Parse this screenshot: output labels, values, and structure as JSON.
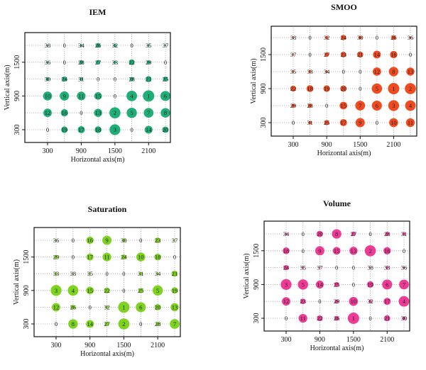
{
  "chart_data": [
    {
      "type": "scatter",
      "title": "IEM",
      "xlabel": "Horizontal axis(m)",
      "ylabel": "Vertical axis(m)",
      "color": "#1fae78",
      "x": [
        300,
        600,
        900,
        1200,
        1500,
        1800,
        2100,
        2400
      ],
      "y": [
        1800,
        1500,
        1200,
        900,
        600,
        300
      ],
      "xticks": [
        "300",
        "900",
        "1500",
        "2100"
      ],
      "yticks": [
        "300",
        "900",
        "1500"
      ],
      "grid": true,
      "values": [
        [
          38,
          0,
          34,
          26,
          32,
          0,
          35,
          37
        ],
        [
          36,
          0,
          28,
          27,
          33,
          22,
          29,
          0
        ],
        [
          30,
          24,
          31,
          0,
          0,
          28,
          21,
          25
        ],
        [
          10,
          9,
          11,
          15,
          0,
          4,
          1,
          6
        ],
        [
          12,
          16,
          0,
          13,
          2,
          5,
          7,
          8
        ],
        [
          0,
          19,
          17,
          18,
          3,
          0,
          14,
          20
        ]
      ]
    },
    {
      "type": "scatter",
      "title": "SMOO",
      "xlabel": "Horizontal axis(m)",
      "ylabel": "Vertical axis(m)",
      "color": "#f04a20",
      "x": [
        300,
        600,
        900,
        1200,
        1500,
        1800,
        2100,
        2400
      ],
      "y": [
        1800,
        1500,
        1200,
        900,
        600,
        300
      ],
      "xticks": [
        "300",
        "900",
        "1500",
        "2100"
      ],
      "yticks": [
        "300",
        "900",
        "1500"
      ],
      "grid": true,
      "values": [
        [
          38,
          0,
          32,
          24,
          30,
          0,
          26,
          36
        ],
        [
          37,
          0,
          27,
          23,
          21,
          14,
          16,
          0
        ],
        [
          35,
          33,
          34,
          0,
          0,
          12,
          8,
          13
        ],
        [
          22,
          18,
          19,
          20,
          0,
          5,
          1,
          2
        ],
        [
          29,
          28,
          0,
          15,
          7,
          6,
          3,
          4
        ],
        [
          0,
          31,
          25,
          17,
          9,
          0,
          10,
          11
        ]
      ]
    },
    {
      "type": "scatter",
      "title": "Saturation",
      "xlabel": "Horizontal axis(m)",
      "ylabel": "Vertical axis(m)",
      "color": "#7ed321",
      "x": [
        300,
        600,
        900,
        1200,
        1500,
        1800,
        2100,
        2400
      ],
      "y": [
        1800,
        1500,
        1200,
        900,
        600,
        300
      ],
      "xticks": [
        "300",
        "900",
        "1500",
        "2100"
      ],
      "yticks": [
        "300",
        "900",
        "1500"
      ],
      "grid": true,
      "values": [
        [
          36,
          0,
          16,
          9,
          30,
          0,
          23,
          37
        ],
        [
          29,
          0,
          17,
          11,
          24,
          10,
          18,
          0
        ],
        [
          33,
          38,
          35,
          0,
          0,
          31,
          34,
          21
        ],
        [
          3,
          4,
          15,
          22,
          0,
          25,
          5,
          19
        ],
        [
          12,
          26,
          0,
          32,
          1,
          6,
          20,
          13
        ],
        [
          0,
          8,
          14,
          27,
          2,
          0,
          28,
          7
        ]
      ]
    },
    {
      "type": "scatter",
      "title": "Volume",
      "xlabel": "Horizontal axis(m)",
      "ylabel": "Vertical axis(m)",
      "color": "#ee3c96",
      "x": [
        300,
        600,
        900,
        1200,
        1500,
        1800,
        2100,
        2400
      ],
      "y": [
        1800,
        1500,
        1200,
        900,
        600,
        300
      ],
      "xticks": [
        "300",
        "900",
        "1500",
        "2100"
      ],
      "yticks": [
        "300",
        "900",
        "1500"
      ],
      "grid": true,
      "values": [
        [
          34,
          0,
          20,
          8,
          27,
          0,
          28,
          31
        ],
        [
          18,
          0,
          9,
          15,
          13,
          2,
          16,
          0
        ],
        [
          24,
          35,
          37,
          0,
          0,
          38,
          33,
          36
        ],
        [
          3,
          5,
          14,
          25,
          0,
          19,
          6,
          7
        ],
        [
          12,
          23,
          0,
          29,
          10,
          32,
          17,
          4
        ],
        [
          0,
          11,
          22,
          26,
          1,
          0,
          21,
          30
        ]
      ]
    }
  ]
}
